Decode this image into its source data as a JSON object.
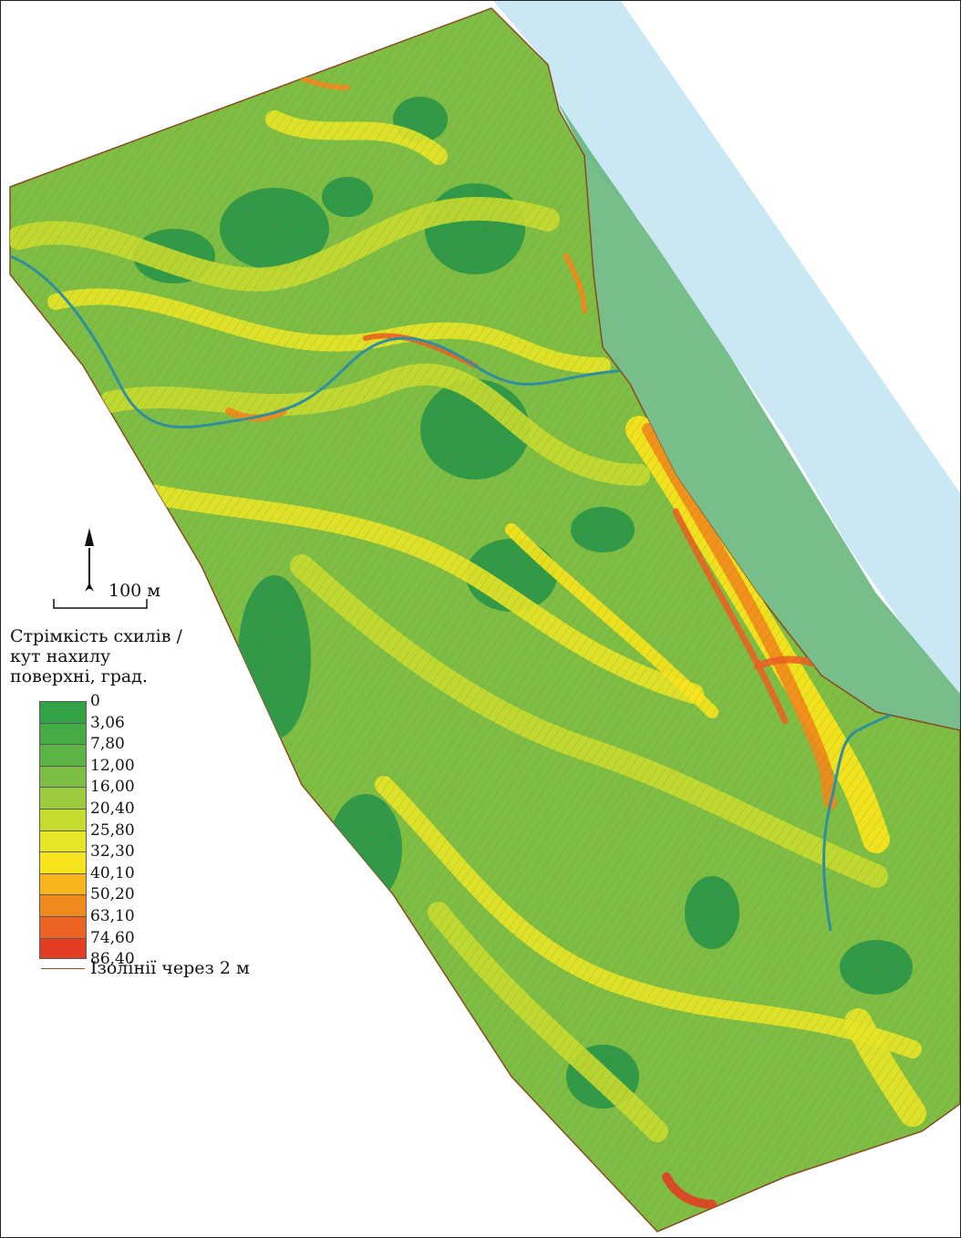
{
  "map": {
    "scale_bar": {
      "label": "100 м"
    },
    "north_arrow": {
      "icon": "north-arrow-icon"
    },
    "colors": {
      "water": "#c9e8f3",
      "contour": "#b5451b",
      "flat": "#2f9a47"
    }
  },
  "legend": {
    "title_lines": [
      "Стрімкість схилів /",
      "кут нахилу",
      "поверхні, град."
    ],
    "breaks": [
      "0",
      "3,06",
      "7,80",
      "12,00",
      "16,00",
      "20,40",
      "25,80",
      "32,30",
      "40,10",
      "50,20",
      "63,10",
      "74,60",
      "86,40"
    ],
    "colors": [
      "#32a246",
      "#44ab45",
      "#5bb445",
      "#7dbf44",
      "#9ccb40",
      "#c5db30",
      "#e6e527",
      "#f6e51d",
      "#f8b61c",
      "#f08a1c",
      "#ea6322",
      "#e33e24",
      "#dc2127"
    ],
    "contour_label": "Ізолінії через 2 м"
  }
}
